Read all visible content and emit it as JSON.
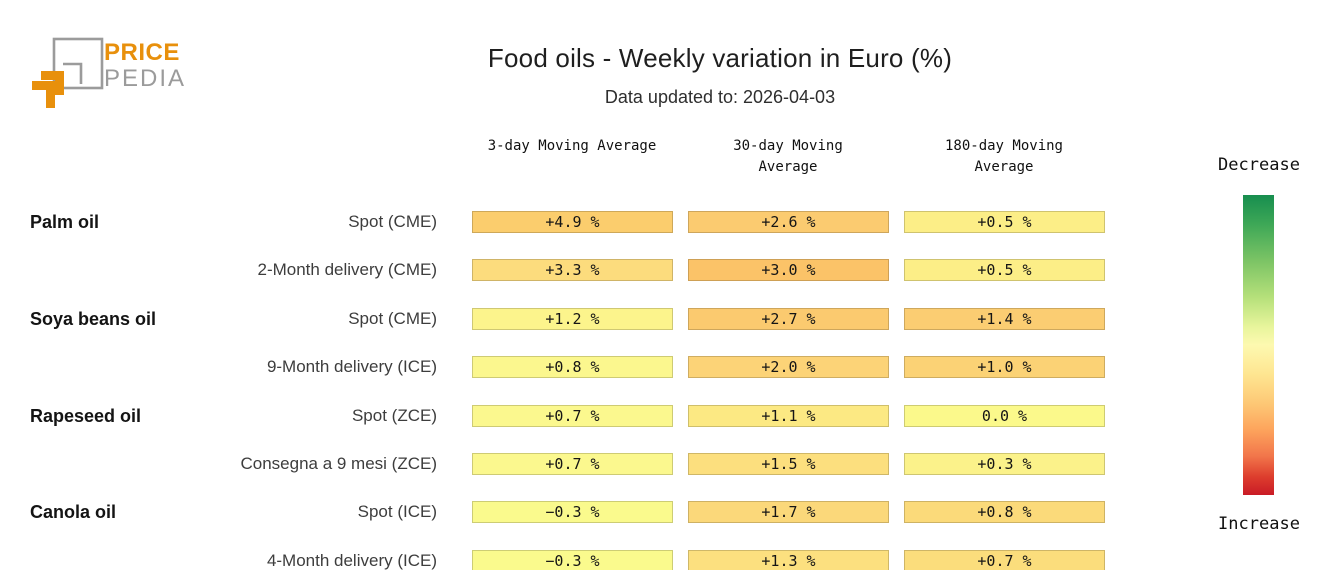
{
  "logo": {
    "line1": "PRICE",
    "line2": "PEDIA",
    "orange": "#e8900c",
    "gray": "#9b9b9b"
  },
  "header": {
    "title": "Food oils - Weekly variation in Euro (%)",
    "subtitle": "Data updated to: 2026-04-03"
  },
  "chart_data": {
    "type": "heatmap",
    "title": "Food oils - Weekly variation in Euro (%)",
    "subtitle": "Data updated to: 2026-04-03",
    "unit": "percent weekly variation in Euro",
    "columns": [
      "3-day Moving Average",
      "30-day Moving Average",
      "180-day Moving Average"
    ],
    "rows": [
      {
        "group": "Palm oil",
        "label": "Spot (CME)",
        "values": [
          4.9,
          2.6,
          0.5
        ],
        "display": [
          "+4.9 %",
          "+2.6 %",
          "+0.5 %"
        ],
        "colors": [
          "#fbcd6d",
          "#fbcb70",
          "#fcee87"
        ]
      },
      {
        "group": "",
        "label": "2-Month delivery (CME)",
        "values": [
          3.3,
          3.0,
          0.5
        ],
        "display": [
          "+3.3 %",
          "+3.0 %",
          "+0.5 %"
        ],
        "colors": [
          "#fcdc7d",
          "#fbc368",
          "#fcee87"
        ]
      },
      {
        "group": "Soya beans oil",
        "label": "Spot (CME)",
        "values": [
          1.2,
          2.7,
          1.4
        ],
        "display": [
          "+1.2 %",
          "+2.7 %",
          "+1.4 %"
        ],
        "colors": [
          "#fcf48c",
          "#fbca6f",
          "#fbcd72"
        ]
      },
      {
        "group": "",
        "label": "9-Month delivery (ICE)",
        "values": [
          0.8,
          2.0,
          1.0
        ],
        "display": [
          "+0.8 %",
          "+2.0 %",
          "+1.0 %"
        ],
        "colors": [
          "#fbf78e",
          "#fcd377",
          "#fbd275"
        ]
      },
      {
        "group": "Rapeseed oil",
        "label": "Spot (ZCE)",
        "values": [
          0.7,
          1.1,
          0.0
        ],
        "display": [
          "+0.7 %",
          "+1.1 %",
          "0.0 %"
        ],
        "colors": [
          "#fbf88e",
          "#fce983",
          "#fbf98b"
        ]
      },
      {
        "group": "",
        "label": "Consegna a 9 mesi (ZCE)",
        "values": [
          0.7,
          1.5,
          0.3
        ],
        "display": [
          "+0.7 %",
          "+1.5 %",
          "+0.3 %"
        ],
        "colors": [
          "#fbf88e",
          "#fcdf7e",
          "#fbf28a"
        ]
      },
      {
        "group": "Canola oil",
        "label": "Spot (ICE)",
        "values": [
          -0.3,
          1.7,
          0.8
        ],
        "display": [
          "−0.3 %",
          "+1.7 %",
          "+0.8 %"
        ],
        "colors": [
          "#fafa8d",
          "#fbd87a",
          "#fbda7a"
        ]
      },
      {
        "group": "",
        "label": "4-Month delivery (ICE)",
        "values": [
          -0.3,
          1.3,
          0.7
        ],
        "display": [
          "−0.3 %",
          "+1.3 %",
          "+0.7 %"
        ],
        "colors": [
          "#fafa8d",
          "#fce07f",
          "#fbdd7c"
        ]
      }
    ],
    "legend": {
      "top_label": "Decrease",
      "bottom_label": "Increase",
      "gradient_top_color": "#178e4f",
      "gradient_mid_color": "#fdf9b0",
      "gradient_bottom_color": "#c91b26"
    },
    "layout": {
      "legend_position": "right",
      "grid": false
    }
  }
}
